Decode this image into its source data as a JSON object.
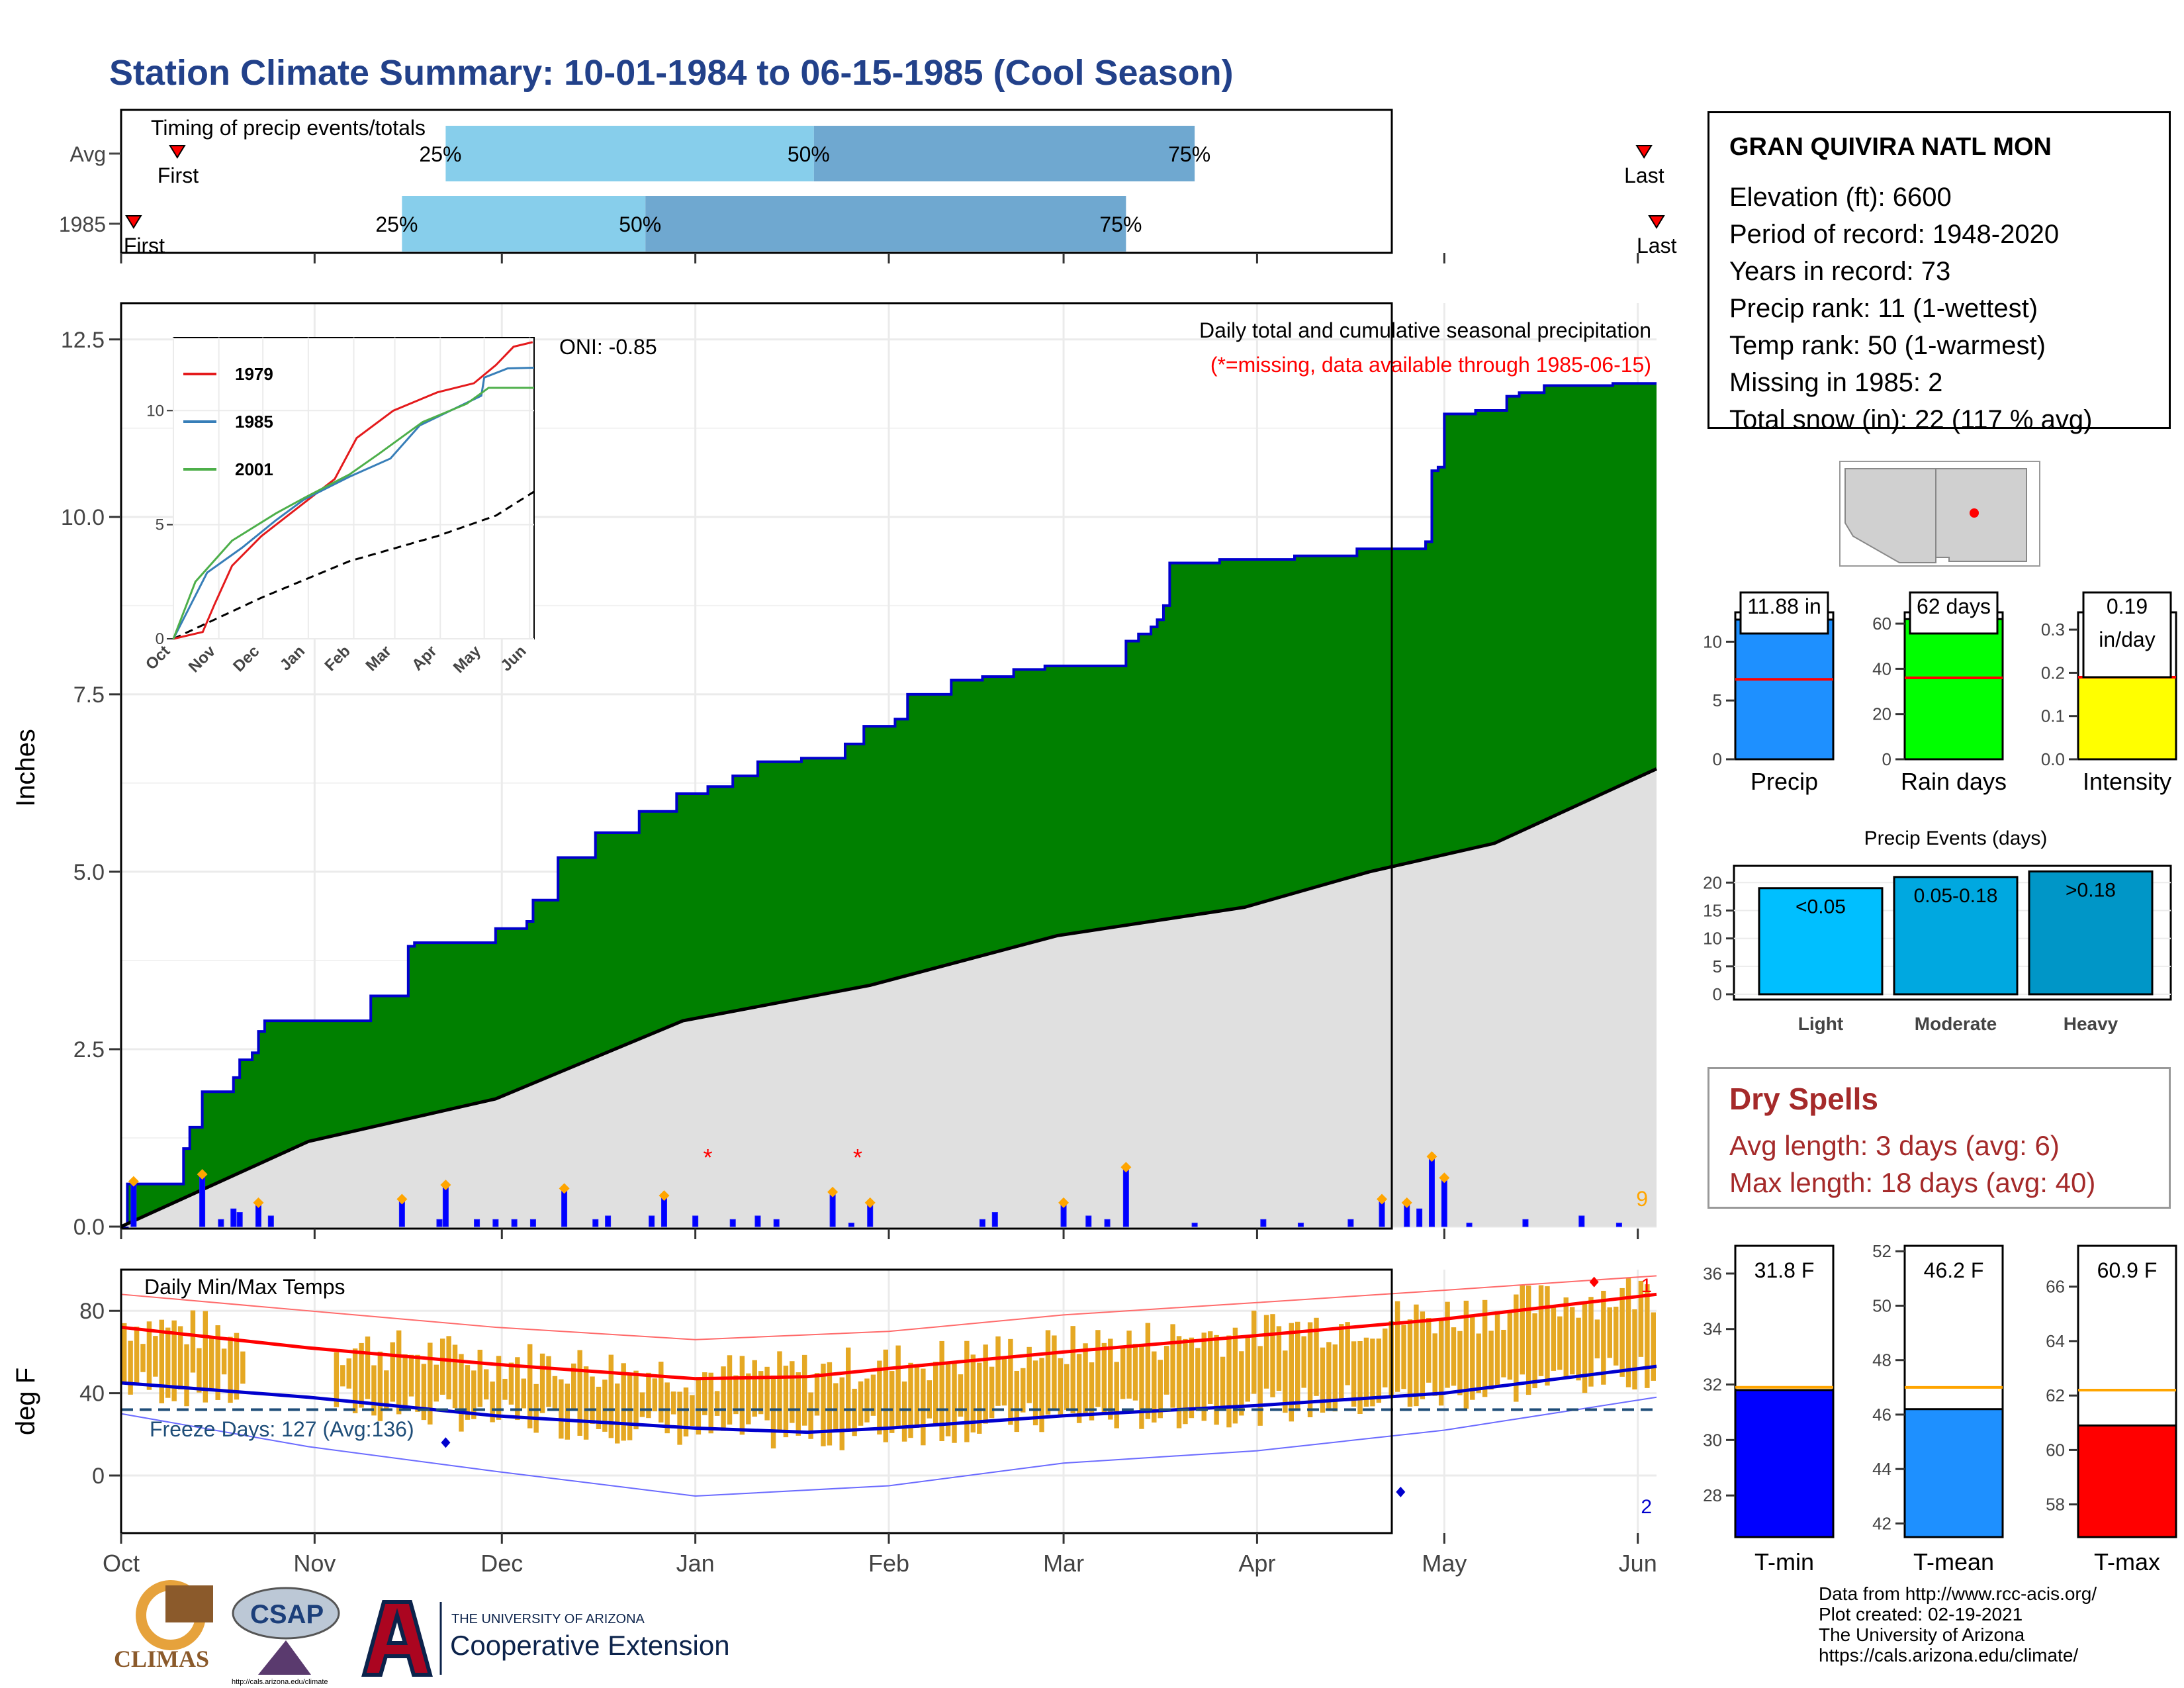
{
  "title": "Station Climate Summary: 10-01-1984 to 06-15-1985 (Cool Season)",
  "timing": {
    "panel_title": "Timing of precip events/totals",
    "rows": [
      {
        "label": "Avg",
        "first_label": "First",
        "last_label": "Last",
        "first_day": 9,
        "last_day": 244,
        "p25_day": 52,
        "p50_day": 111,
        "p75_day": 172,
        "p25_label": "25%",
        "p50_label": "50%",
        "p75_label": "75%"
      },
      {
        "label": "1985",
        "first_label": "First",
        "last_label": "Last",
        "first_day": 2,
        "last_day": 246,
        "p25_day": 45,
        "p50_day": 84,
        "p75_day": 161,
        "p25_label": "25%",
        "p50_label": "50%",
        "p75_label": "75%"
      }
    ]
  },
  "chart_data": [
    {
      "type": "area",
      "name": "cumulative_precip",
      "ylabel": "Inches",
      "ylim": [
        0,
        13
      ],
      "yticks": [
        "0.0",
        "2.5",
        "5.0",
        "7.5",
        "10.0",
        "12.5"
      ],
      "xlim_days": [
        0,
        245
      ],
      "month_ticks": [
        {
          "label": "Oct",
          "day": 0
        },
        {
          "label": "Nov",
          "day": 31
        },
        {
          "label": "Dec",
          "day": 61
        },
        {
          "label": "Jan",
          "day": 92
        },
        {
          "label": "Feb",
          "day": 123
        },
        {
          "label": "Mar",
          "day": 151
        },
        {
          "label": "Apr",
          "day": 182
        },
        {
          "label": "May",
          "day": 212
        },
        {
          "label": "Jun",
          "day": 243
        }
      ],
      "title_text": "Daily total and cumulative seasonal precipitation",
      "missing_note": "(*=missing, data available through 1985-06-15)",
      "oni_text": "ONI: -0.85",
      "count_label": "9",
      "cumulative_steps": [
        [
          0,
          0
        ],
        [
          1,
          0.6
        ],
        [
          10,
          1.1
        ],
        [
          11,
          1.4
        ],
        [
          13,
          1.9
        ],
        [
          18,
          2.1
        ],
        [
          19,
          2.35
        ],
        [
          21,
          2.45
        ],
        [
          22,
          2.75
        ],
        [
          23,
          2.9
        ],
        [
          40,
          3.25
        ],
        [
          46,
          3.95
        ],
        [
          47,
          4.0
        ],
        [
          60,
          4.2
        ],
        [
          65,
          4.3
        ],
        [
          66,
          4.6
        ],
        [
          70,
          5.2
        ],
        [
          76,
          5.55
        ],
        [
          83,
          5.85
        ],
        [
          89,
          6.1
        ],
        [
          94,
          6.2
        ],
        [
          98,
          6.35
        ],
        [
          102,
          6.55
        ],
        [
          109,
          6.6
        ],
        [
          116,
          6.8
        ],
        [
          119,
          7.05
        ],
        [
          124,
          7.15
        ],
        [
          126,
          7.5
        ],
        [
          133,
          7.7
        ],
        [
          138,
          7.75
        ],
        [
          143,
          7.85
        ],
        [
          148,
          7.9
        ],
        [
          161,
          8.25
        ],
        [
          163,
          8.35
        ],
        [
          165,
          8.45
        ],
        [
          166,
          8.55
        ],
        [
          167,
          8.75
        ],
        [
          168,
          9.35
        ],
        [
          176,
          9.4
        ],
        [
          188,
          9.45
        ],
        [
          198,
          9.55
        ],
        [
          209,
          9.65
        ],
        [
          210,
          10.65
        ],
        [
          211,
          10.7
        ],
        [
          212,
          11.45
        ],
        [
          217,
          11.5
        ],
        [
          222,
          11.7
        ],
        [
          224,
          11.75
        ],
        [
          228,
          11.85
        ],
        [
          239,
          11.88
        ],
        [
          246,
          11.88
        ]
      ],
      "avg_cumulative": [
        [
          0,
          0
        ],
        [
          30,
          1.2
        ],
        [
          60,
          1.8
        ],
        [
          90,
          2.9
        ],
        [
          120,
          3.4
        ],
        [
          150,
          4.1
        ],
        [
          180,
          4.5
        ],
        [
          200,
          5.0
        ],
        [
          220,
          5.4
        ],
        [
          246,
          6.45
        ]
      ],
      "daily_bars": [
        [
          2,
          0.6
        ],
        [
          13,
          0.7
        ],
        [
          16,
          0.1
        ],
        [
          18,
          0.25
        ],
        [
          19,
          0.2
        ],
        [
          22,
          0.3
        ],
        [
          24,
          0.15
        ],
        [
          45,
          0.35
        ],
        [
          51,
          0.1
        ],
        [
          52,
          0.55
        ],
        [
          57,
          0.1
        ],
        [
          60,
          0.1
        ],
        [
          63,
          0.1
        ],
        [
          66,
          0.1
        ],
        [
          71,
          0.5
        ],
        [
          76,
          0.1
        ],
        [
          78,
          0.15
        ],
        [
          85,
          0.15
        ],
        [
          87,
          0.4
        ],
        [
          92,
          0.15
        ],
        [
          98,
          0.1
        ],
        [
          102,
          0.15
        ],
        [
          105,
          0.1
        ],
        [
          114,
          0.45
        ],
        [
          117,
          0.05
        ],
        [
          120,
          0.3
        ],
        [
          138,
          0.1
        ],
        [
          140,
          0.2
        ],
        [
          151,
          0.3
        ],
        [
          155,
          0.15
        ],
        [
          158,
          0.1
        ],
        [
          161,
          0.8
        ],
        [
          172,
          0.05
        ],
        [
          183,
          0.1
        ],
        [
          189,
          0.05
        ],
        [
          197,
          0.1
        ],
        [
          202,
          0.35
        ],
        [
          206,
          0.3
        ],
        [
          208,
          0.25
        ],
        [
          210,
          0.95
        ],
        [
          212,
          0.65
        ],
        [
          216,
          0.05
        ],
        [
          225,
          0.1
        ],
        [
          234,
          0.15
        ],
        [
          240,
          0.05
        ]
      ],
      "missing_days": [
        94,
        118
      ],
      "inset": {
        "type": "line",
        "yticks": [
          "0",
          "5",
          "10"
        ],
        "ylim": [
          0,
          13
        ],
        "xticks": [
          "Oct",
          "Nov",
          "Dec",
          "Jan",
          "Feb",
          "Mar",
          "Apr",
          "May",
          "Jun"
        ],
        "series": [
          {
            "name": "1979",
            "color": "#e41a1c",
            "points": [
              [
                0,
                0
              ],
              [
                20,
                0.3
              ],
              [
                28,
                1.5
              ],
              [
                40,
                3.2
              ],
              [
                60,
                4.5
              ],
              [
                90,
                6.0
              ],
              [
                110,
                7.0
              ],
              [
                125,
                8.8
              ],
              [
                150,
                10.0
              ],
              [
                180,
                10.8
              ],
              [
                205,
                11.2
              ],
              [
                220,
                12.0
              ],
              [
                232,
                12.8
              ],
              [
                245,
                13.0
              ]
            ]
          },
          {
            "name": "1985",
            "color": "#377eb8",
            "points": [
              [
                0,
                0
              ],
              [
                23,
                2.9
              ],
              [
                47,
                4.0
              ],
              [
                70,
                5.2
              ],
              [
                89,
                6.1
              ],
              [
                120,
                7.1
              ],
              [
                148,
                7.9
              ],
              [
                168,
                9.35
              ],
              [
                210,
                10.65
              ],
              [
                212,
                11.45
              ],
              [
                228,
                11.85
              ],
              [
                246,
                11.88
              ]
            ]
          },
          {
            "name": "2001",
            "color": "#4daf4a",
            "points": [
              [
                0,
                0
              ],
              [
                15,
                2.5
              ],
              [
                40,
                4.3
              ],
              [
                70,
                5.5
              ],
              [
                90,
                6.2
              ],
              [
                120,
                7.2
              ],
              [
                140,
                8.1
              ],
              [
                170,
                9.5
              ],
              [
                200,
                10.3
              ],
              [
                215,
                11.0
              ],
              [
                246,
                11.0
              ]
            ]
          }
        ],
        "avg_points": [
          [
            0,
            0
          ],
          [
            60,
            1.8
          ],
          [
            120,
            3.4
          ],
          [
            180,
            4.5
          ],
          [
            220,
            5.4
          ],
          [
            246,
            6.45
          ]
        ]
      }
    },
    {
      "type": "bar",
      "name": "precip_totals",
      "panels": [
        {
          "label": "Precip",
          "value_label": "11.88 in",
          "value": 11.88,
          "avg": 6.8,
          "ylim": [
            0,
            12.5
          ],
          "yticks": [
            {
              "v": 0,
              "t": "0"
            },
            {
              "v": 5,
              "t": "5"
            },
            {
              "v": 10,
              "t": "10"
            }
          ],
          "color": "#1e90ff"
        },
        {
          "label": "Rain days",
          "value_label": "62 days",
          "value": 62,
          "avg": 36,
          "ylim": [
            0,
            65
          ],
          "yticks": [
            {
              "v": 0,
              "t": "0"
            },
            {
              "v": 20,
              "t": "20"
            },
            {
              "v": 40,
              "t": "40"
            },
            {
              "v": 60,
              "t": "60"
            }
          ],
          "color": "#00ff00"
        },
        {
          "label": "Intensity",
          "value_label": "0.19",
          "value_sub": "in/day",
          "value": 0.19,
          "avg": 0.19,
          "ylim": [
            0,
            0.34
          ],
          "yticks": [
            {
              "v": 0,
              "t": "0.0"
            },
            {
              "v": 0.1,
              "t": "0.1"
            },
            {
              "v": 0.2,
              "t": "0.2"
            },
            {
              "v": 0.3,
              "t": "0.3"
            }
          ],
          "color": "#ffff00"
        }
      ]
    },
    {
      "type": "bar",
      "name": "precip_events",
      "title": "Precip Events (days)",
      "ylim": [
        0,
        23
      ],
      "yticks": [
        "0",
        "5",
        "10",
        "15",
        "20"
      ],
      "categories": [
        "Light",
        "Moderate",
        "Heavy"
      ],
      "bar_labels": [
        "<0.05",
        "0.05-0.18",
        ">0.18"
      ],
      "values": [
        19,
        21,
        22
      ],
      "colors": [
        "#00bfff",
        "#00a8e0",
        "#0096c7"
      ]
    },
    {
      "type": "bar",
      "name": "daily_temps",
      "ylabel": "deg F",
      "title_text": "Daily Min/Max Temps",
      "freeze_text": "Freeze Days: 127 (Avg:136)",
      "ylim": [
        -28,
        100
      ],
      "yticks": [
        "0",
        "40",
        "80"
      ],
      "month_ticks": [
        "Oct",
        "Nov",
        "Dec",
        "Jan",
        "Feb",
        "Mar",
        "Apr",
        "May",
        "Jun"
      ],
      "corner_high_label": "1",
      "corner_low_label": "2",
      "freeze_line": 32,
      "avg_max": [
        [
          0,
          72
        ],
        [
          30,
          62
        ],
        [
          60,
          54
        ],
        [
          92,
          47
        ],
        [
          110,
          48
        ],
        [
          123,
          52
        ],
        [
          151,
          60
        ],
        [
          182,
          68
        ],
        [
          212,
          76
        ],
        [
          246,
          88
        ]
      ],
      "avg_min": [
        [
          0,
          45
        ],
        [
          30,
          38
        ],
        [
          60,
          29
        ],
        [
          92,
          23
        ],
        [
          110,
          21
        ],
        [
          123,
          23
        ],
        [
          151,
          29
        ],
        [
          182,
          34
        ],
        [
          212,
          40
        ],
        [
          246,
          53
        ]
      ],
      "rec_max": [
        [
          0,
          88
        ],
        [
          30,
          80
        ],
        [
          60,
          72
        ],
        [
          92,
          66
        ],
        [
          123,
          70
        ],
        [
          151,
          78
        ],
        [
          182,
          84
        ],
        [
          212,
          90
        ],
        [
          246,
          97
        ]
      ],
      "rec_min": [
        [
          0,
          30
        ],
        [
          30,
          14
        ],
        [
          60,
          2
        ],
        [
          92,
          -10
        ],
        [
          123,
          -5
        ],
        [
          151,
          6
        ],
        [
          182,
          12
        ],
        [
          212,
          22
        ],
        [
          246,
          38
        ]
      ]
    },
    {
      "type": "bar",
      "name": "temp_summary",
      "panels": [
        {
          "label": "T-min",
          "value_label": "31.8 F",
          "value": 31.8,
          "avg": 31.9,
          "ylim": [
            26.5,
            37
          ],
          "yticks": [
            {
              "v": 28,
              "t": "28"
            },
            {
              "v": 30,
              "t": "30"
            },
            {
              "v": 32,
              "t": "32"
            },
            {
              "v": 34,
              "t": "34"
            },
            {
              "v": 36,
              "t": "36"
            }
          ],
          "color": "#0000ff"
        },
        {
          "label": "T-mean",
          "value_label": "46.2 F",
          "value": 46.2,
          "avg": 47.0,
          "ylim": [
            41.5,
            52.2
          ],
          "yticks": [
            {
              "v": 42,
              "t": "42"
            },
            {
              "v": 44,
              "t": "44"
            },
            {
              "v": 46,
              "t": "46"
            },
            {
              "v": 48,
              "t": "48"
            },
            {
              "v": 50,
              "t": "50"
            },
            {
              "v": 52,
              "t": "52"
            }
          ],
          "color": "#1e90ff"
        },
        {
          "label": "T-max",
          "value_label": "60.9 F",
          "value": 60.9,
          "avg": 62.2,
          "ylim": [
            56.8,
            67.5
          ],
          "yticks": [
            {
              "v": 58,
              "t": "58"
            },
            {
              "v": 60,
              "t": "60"
            },
            {
              "v": 62,
              "t": "62"
            },
            {
              "v": 64,
              "t": "64"
            },
            {
              "v": 66,
              "t": "66"
            }
          ],
          "color": "#ff0000"
        }
      ]
    }
  ],
  "station": {
    "name": "GRAN QUIVIRA NATL MON",
    "lines": [
      "Elevation (ft): 6600",
      "Period of record: 1948-2020",
      "Years in record: 73",
      "Precip rank: 11 (1-wettest)",
      "Temp rank: 50 (1-warmest)",
      "Missing in 1985: 2",
      "Total snow (in): 22 (117 % avg)"
    ]
  },
  "dry_spells": {
    "title": "Dry Spells",
    "avg_line": "Avg length: 3 days (avg: 6)",
    "max_line": "Max length: 18 days (avg: 40)"
  },
  "credits": [
    "Data from http://www.rcc-acis.org/",
    "Plot created: 02-19-2021",
    "The University of Arizona",
    "https://cals.arizona.edu/climate/"
  ],
  "logos": {
    "climas": "CLIMAS",
    "csap": "CSAP",
    "csap_url": "http://cals.arizona.edu/climate",
    "ua_small": "THE UNIVERSITY OF ARIZONA",
    "ua_large": "Cooperative Extension"
  },
  "colors": {
    "title": "#22418a",
    "cumulative_fill": "#008000",
    "cumulative_line": "#0000cd",
    "avg_fill": "#e0e0e0",
    "daily_bar": "#0000ff",
    "temp_bar": "#e5a823",
    "dry_title": "#a52a2a"
  }
}
